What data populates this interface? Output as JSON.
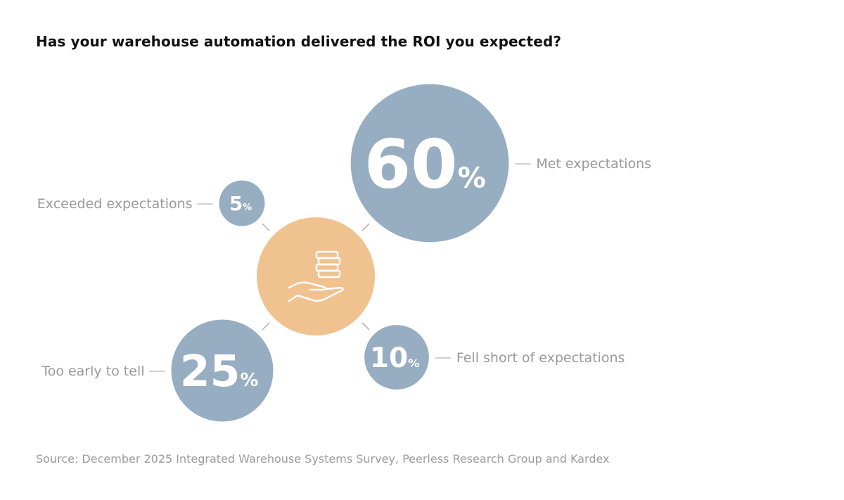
{
  "chart_data": {
    "type": "bubble",
    "title": "Has your warehouse automation delivered the ROI you expected?",
    "unit": "%",
    "categories": [
      "Met expectations",
      "Exceeded expectations",
      "Too early to tell",
      "Fell short of expectations"
    ],
    "values": [
      60,
      5,
      25,
      10
    ],
    "center_icon": "hand-holding-coins-icon",
    "colors": {
      "bubble": "#97adc1",
      "center": "#efc28f",
      "label": "#9a9a9a"
    }
  },
  "source": "Source: December 2025 Integrated Warehouse Systems Survey, Peerless Research Group and Kardex"
}
